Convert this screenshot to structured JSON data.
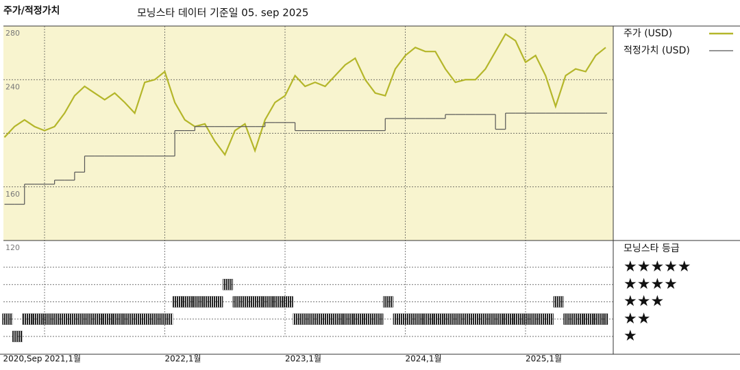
{
  "chart_data": [
    {
      "type": "line",
      "title": "주가/적정가치",
      "subtitle": "모닝스타 데이터 기준일 05. sep 2025",
      "x": [
        "2020-09",
        "2020-10",
        "2020-11",
        "2020-12",
        "2021-01",
        "2021-02",
        "2021-03",
        "2021-04",
        "2021-05",
        "2021-06",
        "2021-07",
        "2021-08",
        "2021-09",
        "2021-10",
        "2021-11",
        "2021-12",
        "2022-01",
        "2022-02",
        "2022-03",
        "2022-04",
        "2022-05",
        "2022-06",
        "2022-07",
        "2022-08",
        "2022-09",
        "2022-10",
        "2022-11",
        "2022-12",
        "2023-01",
        "2023-02",
        "2023-03",
        "2023-04",
        "2023-05",
        "2023-06",
        "2023-07",
        "2023-08",
        "2023-09",
        "2023-10",
        "2023-11",
        "2023-12",
        "2024-01",
        "2024-02",
        "2024-03",
        "2024-04",
        "2024-05",
        "2024-06",
        "2024-07",
        "2024-08",
        "2024-09",
        "2024-10",
        "2024-11",
        "2024-12",
        "2025-01",
        "2025-02",
        "2025-03",
        "2025-04",
        "2025-05",
        "2025-06",
        "2025-07",
        "2025-08",
        "2025-09"
      ],
      "xlim": [
        "2020-09",
        "2025-09"
      ],
      "xticks": [
        {
          "value": "2020-09",
          "label": "2020,Sep"
        },
        {
          "value": "2021-01",
          "label": "2021,1월"
        },
        {
          "value": "2022-01",
          "label": "2022,1월"
        },
        {
          "value": "2023-01",
          "label": "2023,1월"
        },
        {
          "value": "2024-01",
          "label": "2024,1월"
        },
        {
          "value": "2025-01",
          "label": "2025,1월"
        }
      ],
      "ylim": [
        120,
        280
      ],
      "yticks": [
        120,
        160,
        {
          "value": 200,
          "label": null
        },
        240,
        280
      ],
      "grid": true,
      "series": [
        {
          "name": "주가 (USD)",
          "color": "#b4b62a",
          "values": [
            197,
            205,
            210,
            205,
            202,
            205,
            215,
            228,
            235,
            230,
            225,
            230,
            223,
            215,
            238,
            240,
            246,
            223,
            210,
            205,
            207,
            194,
            184,
            202,
            207,
            187,
            210,
            223,
            228,
            243,
            235,
            238,
            235,
            243,
            251,
            256,
            240,
            230,
            228,
            248,
            258,
            264,
            261,
            261,
            248,
            238,
            240,
            240,
            248,
            261,
            274,
            269,
            253,
            258,
            243,
            220,
            243,
            248,
            246,
            258,
            264
          ]
        },
        {
          "name": "적정가치 (USD)",
          "color": "#555555",
          "step": true,
          "values": [
            147,
            147,
            162,
            162,
            162,
            165,
            165,
            171,
            183,
            183,
            183,
            183,
            183,
            183,
            183,
            183,
            183,
            202,
            202,
            205,
            205,
            205,
            205,
            205,
            205,
            205,
            208,
            208,
            208,
            202,
            202,
            202,
            202,
            202,
            202,
            202,
            202,
            202,
            211,
            211,
            211,
            211,
            211,
            211,
            214,
            214,
            214,
            214,
            214,
            203,
            215,
            215,
            215,
            215,
            215,
            215,
            215,
            215,
            215,
            215,
            215
          ]
        }
      ]
    },
    {
      "type": "rating",
      "title": "모닝스타 등급",
      "color": "#222222",
      "x": [
        "2020-09",
        "2020-10",
        "2020-11",
        "2020-12",
        "2021-01",
        "2021-02",
        "2021-03",
        "2021-04",
        "2021-05",
        "2021-06",
        "2021-07",
        "2021-08",
        "2021-09",
        "2021-10",
        "2021-11",
        "2021-12",
        "2022-01",
        "2022-02",
        "2022-03",
        "2022-04",
        "2022-05",
        "2022-06",
        "2022-07",
        "2022-08",
        "2022-09",
        "2022-10",
        "2022-11",
        "2022-12",
        "2023-01",
        "2023-02",
        "2023-03",
        "2023-04",
        "2023-05",
        "2023-06",
        "2023-07",
        "2023-08",
        "2023-09",
        "2023-10",
        "2023-11",
        "2023-12",
        "2024-01",
        "2024-02",
        "2024-03",
        "2024-04",
        "2024-05",
        "2024-06",
        "2024-07",
        "2024-08",
        "2024-09",
        "2024-10",
        "2024-11",
        "2024-12",
        "2025-01",
        "2025-02",
        "2025-03",
        "2025-04",
        "2025-05",
        "2025-06",
        "2025-07",
        "2025-08",
        "2025-09"
      ],
      "values": [
        2,
        1,
        2,
        2,
        2,
        2,
        2,
        2,
        2,
        2,
        2,
        2,
        2,
        2,
        2,
        2,
        2,
        3,
        3,
        3,
        3,
        3,
        4,
        3,
        3,
        3,
        3,
        3,
        3,
        2,
        2,
        2,
        2,
        2,
        2,
        2,
        2,
        2,
        3,
        2,
        2,
        2,
        2,
        2,
        2,
        2,
        2,
        2,
        2,
        2,
        2,
        2,
        2,
        2,
        2,
        3,
        2,
        2,
        2,
        2,
        2
      ],
      "yticks": [
        {
          "value": 5,
          "label": "★★★★★"
        },
        {
          "value": 4,
          "label": "★★★★"
        },
        {
          "value": 3,
          "label": "★★★"
        },
        {
          "value": 2,
          "label": "★★"
        },
        {
          "value": 1,
          "label": "★"
        }
      ]
    }
  ]
}
